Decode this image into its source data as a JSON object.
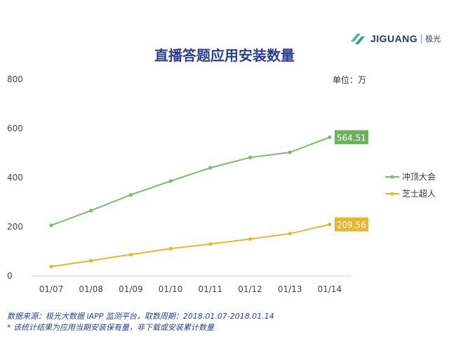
{
  "brand": {
    "name": "JIGUANG",
    "name_cn": "极光"
  },
  "unit_label": "单位：万",
  "footer": {
    "source": "数据来源：极光大数据 iAPP 监测平台，取数周期：2018.01.07-2018.01.14",
    "note": "* 该统计结果为应用当期安装保有量，非下载或安装累计数量"
  },
  "colors": {
    "series1": "#7cbb6b",
    "series2": "#e8b630",
    "label_bg1": "#69b15f",
    "label_bg2": "#e8b630",
    "axis_text": "#444444",
    "axis_line": "#cccccc"
  },
  "chart_data": {
    "type": "line",
    "title": "直播答题应用安装数量",
    "xlabel": "",
    "ylabel": "",
    "unit": "万",
    "categories": [
      "01/07",
      "01/08",
      "01/09",
      "01/10",
      "01/11",
      "01/12",
      "01/13",
      "01/14"
    ],
    "ylim": [
      0,
      800
    ],
    "yticks": [
      0,
      200,
      400,
      600,
      800
    ],
    "grid": false,
    "legend_position": "right",
    "series": [
      {
        "name": "冲顶大会",
        "values": [
          206,
          266,
          330,
          386,
          440,
          482,
          503,
          564.51
        ],
        "end_label": "564.51"
      },
      {
        "name": "芝士超人",
        "values": [
          38,
          62,
          87,
          111,
          130,
          150,
          172,
          209.56
        ],
        "end_label": "209.56"
      }
    ]
  }
}
